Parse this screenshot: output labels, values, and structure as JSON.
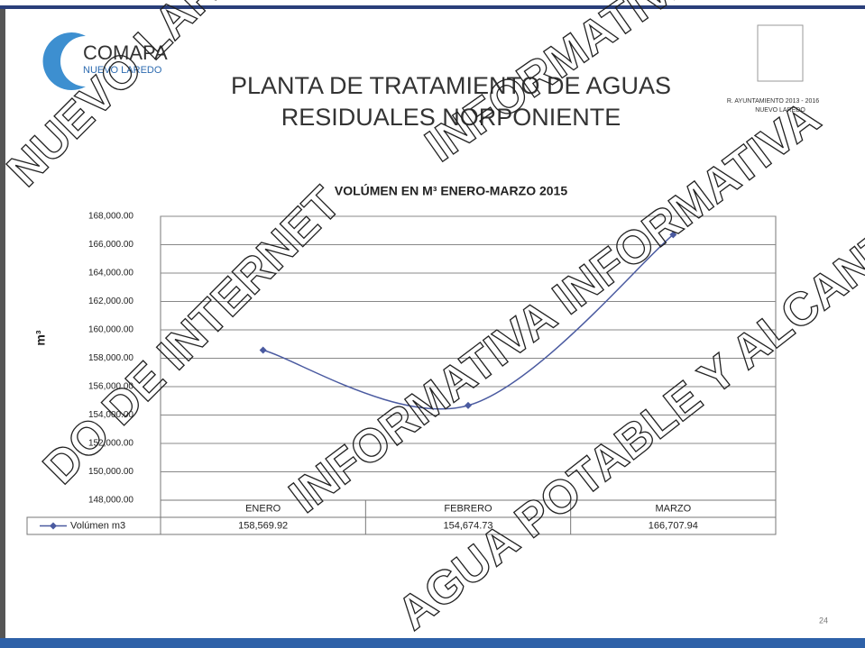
{
  "slide": {
    "title_lines": [
      "PLANTA DE TRATAMIENTO DE AGUAS",
      "RESIDUALES NORPONIENTE"
    ],
    "logo_name": "COMAPA",
    "logo_sub": "NUEVO LAREDO",
    "emblem_lines": [
      "R. AYUNTAMIENTO 2013 - 2016",
      "NUEVO LAREDO"
    ],
    "page_number": "24"
  },
  "watermarks": [
    "NUEVO LARE",
    "INFORMATIVA",
    "DO DE INTERNET",
    "INFORMATIVA INFORMATIVA",
    "AGUA POTABLE Y ALCANT"
  ],
  "chart_data": {
    "type": "line",
    "title": "VOLÚMEN EN M³ ENERO-MARZO 2015",
    "y_label": "m³",
    "categories": [
      "ENERO",
      "FEBRERO",
      "MARZO"
    ],
    "series": [
      {
        "name": "Volúmen m3",
        "color": "#4a5aa0",
        "values": [
          158569.92,
          154674.73,
          166707.94
        ],
        "value_labels": [
          "158,569.92",
          "154,674.73",
          "166,707.94"
        ]
      }
    ],
    "ylim": [
      148000,
      168000
    ],
    "yticks": [
      {
        "value": 148000,
        "label": "148,000.00"
      },
      {
        "value": 150000,
        "label": "150,000.00"
      },
      {
        "value": 152000,
        "label": "152,000.00"
      },
      {
        "value": 154000,
        "label": "154,000.00"
      },
      {
        "value": 156000,
        "label": "156,000.00"
      },
      {
        "value": 158000,
        "label": "158,000.00"
      },
      {
        "value": 160000,
        "label": "160,000.00"
      },
      {
        "value": 162000,
        "label": "162,000.00"
      },
      {
        "value": 164000,
        "label": "164,000.00"
      },
      {
        "value": 166000,
        "label": "166,000.00"
      },
      {
        "value": 168000,
        "label": "168,000.00"
      }
    ],
    "grid": true,
    "data_table": true
  }
}
